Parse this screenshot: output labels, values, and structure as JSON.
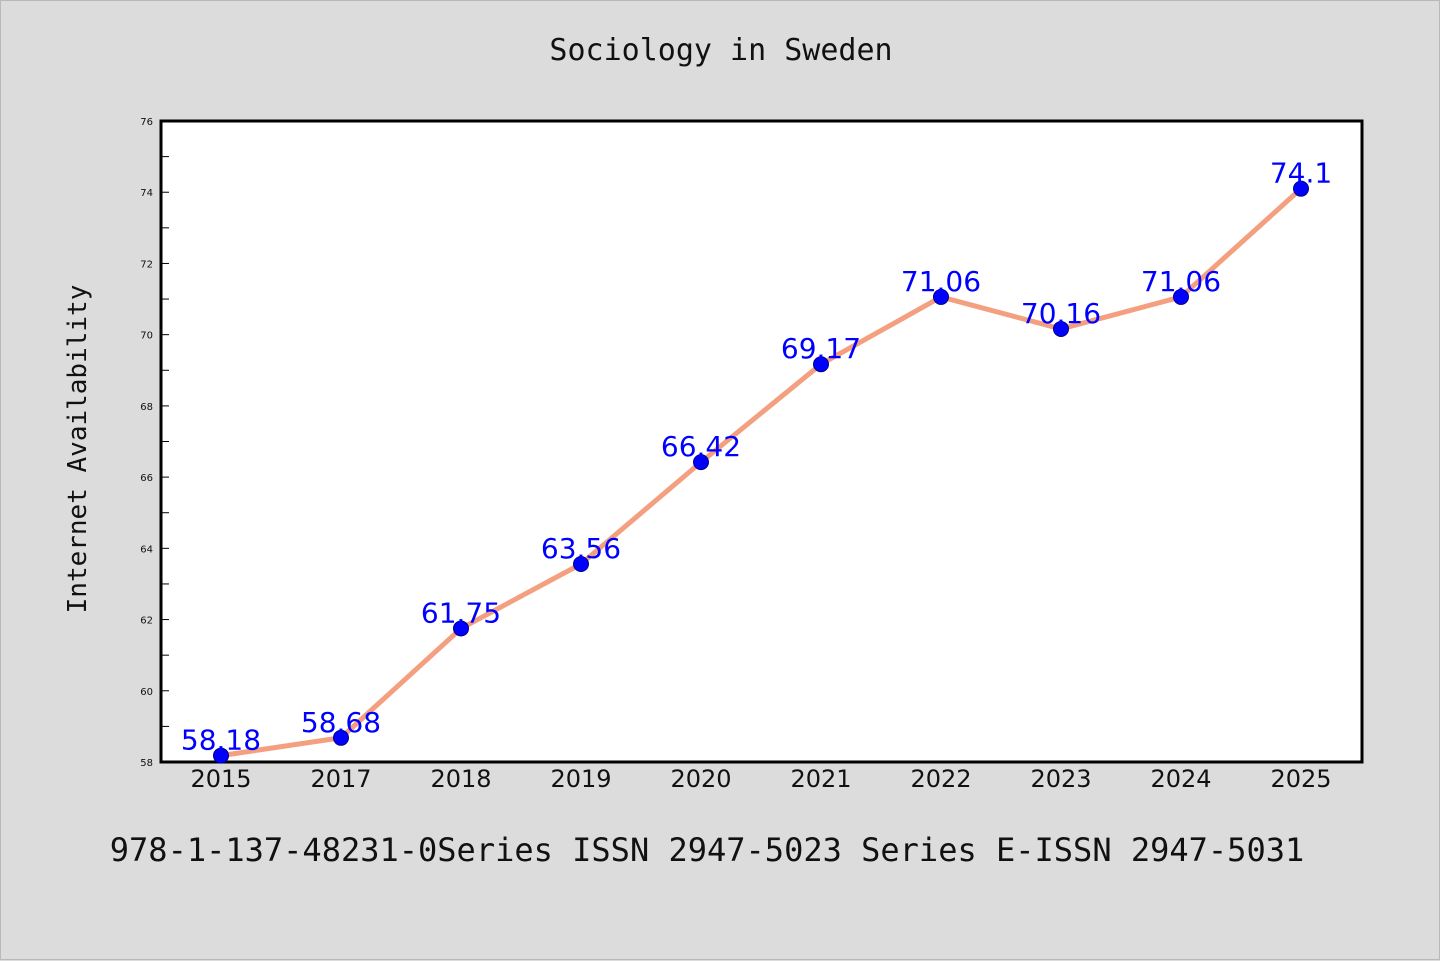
{
  "chart_data": {
    "type": "line",
    "title": "Sociology in Sweden",
    "xlabel": "",
    "ylabel": "Internet Availability",
    "categories": [
      "2015",
      "2017",
      "2018",
      "2019",
      "2020",
      "2021",
      "2022",
      "2023",
      "2024",
      "2025"
    ],
    "series": [
      {
        "values": [
          58.18,
          58.68,
          61.75,
          63.56,
          66.42,
          69.17,
          71.06,
          70.16,
          71.06,
          74.1
        ],
        "data_labels": [
          "58.18",
          "58.68",
          "61.75",
          "63.56",
          "66.42",
          "69.17",
          "71.06",
          "70.16",
          "71.06",
          "74.1"
        ]
      }
    ],
    "ylim": [
      58,
      76
    ],
    "yticks": [
      "58",
      "60",
      "62",
      "64",
      "66",
      "68",
      "70",
      "72",
      "74",
      "76"
    ],
    "grid": false,
    "colors": {
      "line": "#f4a080",
      "marker": "#0000ff",
      "label": "#0000ff",
      "background": "#dcdcdc",
      "plot_background": "#ffffff"
    }
  },
  "footer": "978-1-137-48231-0Series ISSN 2947-5023 Series E-ISSN 2947-5031"
}
